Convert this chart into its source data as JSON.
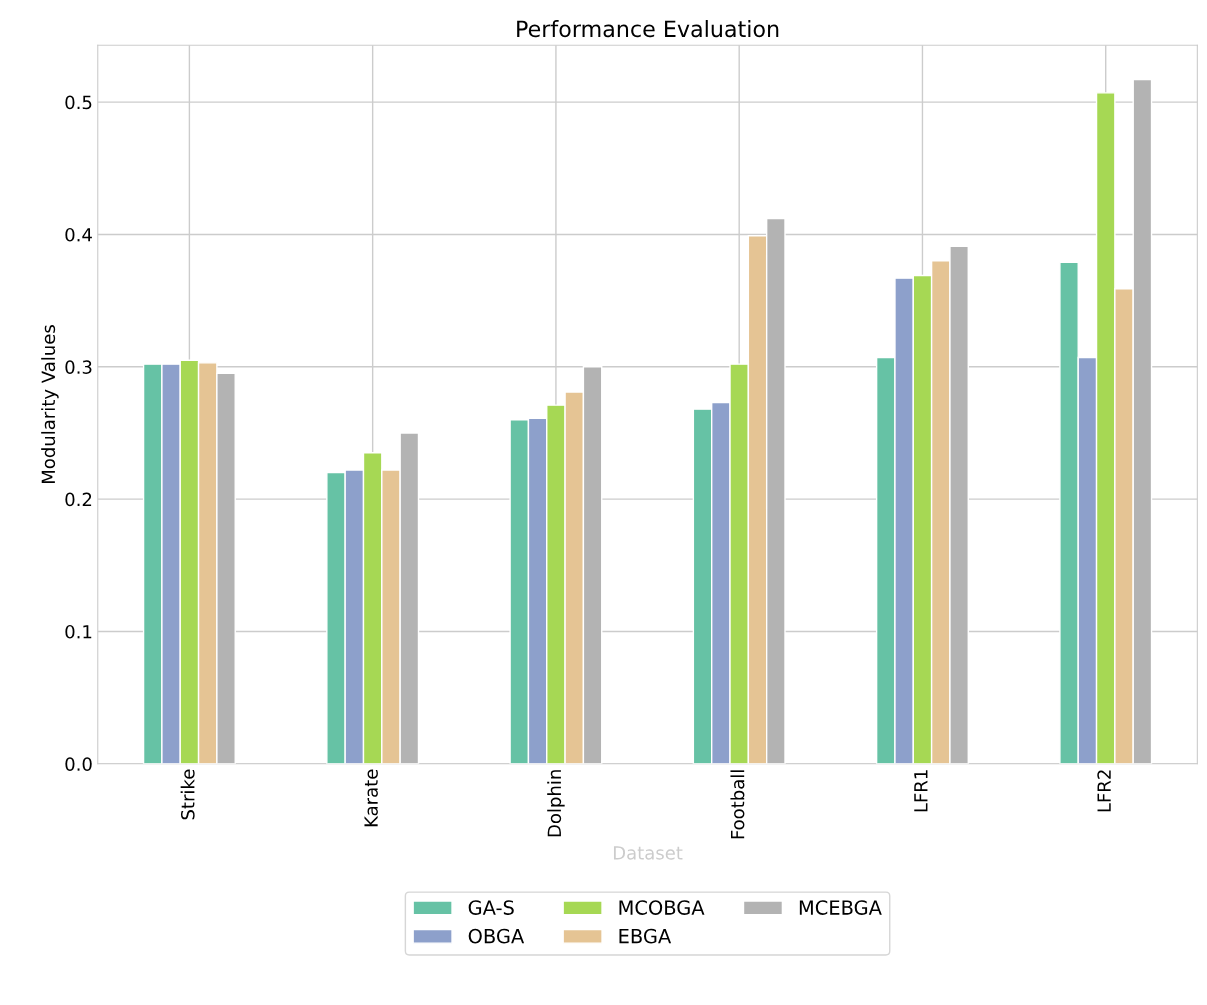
{
  "chart_data": {
    "type": "bar",
    "title": "Performance Evaluation",
    "xlabel": "Dataset",
    "ylabel": "Modularity Values",
    "categories": [
      "Strike",
      "Karate",
      "Dolphin",
      "Football",
      "LFR1",
      "LFR2"
    ],
    "series": [
      {
        "name": "GA-S",
        "color": "#66c2a5",
        "values": [
          0.302,
          0.22,
          0.26,
          0.268,
          0.307,
          0.379
        ]
      },
      {
        "name": "OBGA",
        "color": "#8da0cb",
        "values": [
          0.302,
          0.222,
          0.261,
          0.273,
          0.367,
          0.307
        ]
      },
      {
        "name": "MCOBGA",
        "color": "#a6d854",
        "values": [
          0.305,
          0.235,
          0.271,
          0.302,
          0.369,
          0.507
        ]
      },
      {
        "name": "EBGA",
        "color": "#e5c494",
        "values": [
          0.303,
          0.222,
          0.281,
          0.399,
          0.38,
          0.359
        ]
      },
      {
        "name": "MCEBGA",
        "color": "#b3b3b3",
        "values": [
          0.295,
          0.25,
          0.3,
          0.412,
          0.391,
          0.517
        ]
      }
    ],
    "ylim": [
      0,
      0.543
    ],
    "yticks": [
      {
        "value": 0,
        "label": "0.0"
      },
      0.1,
      0.2,
      0.3,
      0.4,
      0.5
    ],
    "grid": true,
    "legend": "bottom"
  }
}
